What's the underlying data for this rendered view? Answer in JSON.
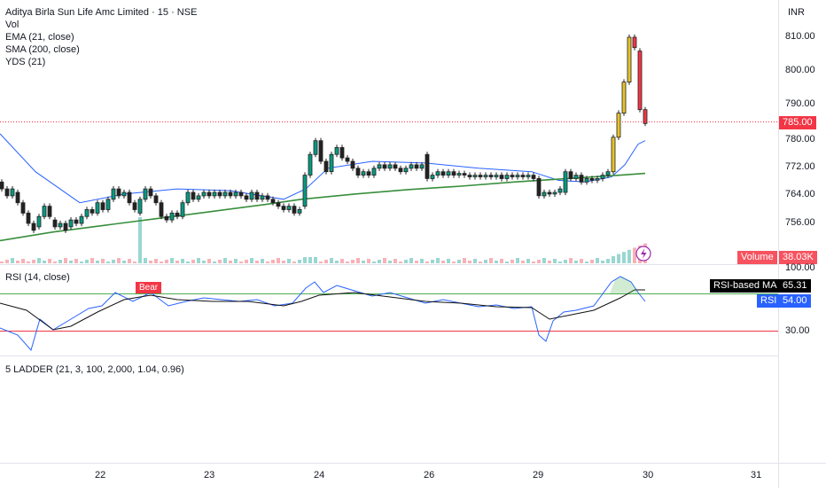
{
  "header": {
    "title": "Aditya Birla Sun Life Amc Limited · 15 · NSE",
    "indicators": [
      "Vol",
      "EMA (21, close)",
      "SMA (200, close)",
      "YDS (21)"
    ]
  },
  "price_axis": {
    "currency": "INR",
    "ticks": [
      "810.00",
      "800.00",
      "790.00",
      "780.00",
      "772.00",
      "764.00",
      "756.00"
    ],
    "last_price": "785.00",
    "last_price_color": "#f23645"
  },
  "volume": {
    "label": "Volume",
    "value": "38.03K",
    "color": "#f7525f"
  },
  "rsi_pane": {
    "title": "RSI (14, close)",
    "bear_label": "Bear",
    "axis_ticks": [
      "100.00",
      "30.00"
    ],
    "ma_label": "RSI-based MA",
    "ma_value": "65.31",
    "rsi_label": "RSI",
    "rsi_value": "54.00"
  },
  "ladder_pane": {
    "title": "5 LADDER (21, 3, 100, 2,000, 1.04, 0.96)"
  },
  "time_axis": {
    "ticks": [
      "22",
      "23",
      "24",
      "26",
      "29",
      "30",
      "31"
    ]
  },
  "chart_data": {
    "type": "candlestick",
    "title": "Aditya Birla Sun Life Amc Limited · 15 · NSE",
    "ylim": [
      750,
      815
    ],
    "series": [
      {
        "name": "EMA (21, close)",
        "color": "#2962ff",
        "points": [
          [
            0,
            782
          ],
          [
            40,
            771
          ],
          [
            90,
            762
          ],
          [
            140,
            764.5
          ],
          [
            200,
            766
          ],
          [
            260,
            765.5
          ],
          [
            320,
            763
          ],
          [
            345,
            766
          ],
          [
            370,
            772
          ],
          [
            420,
            774
          ],
          [
            480,
            773.5
          ],
          [
            540,
            772
          ],
          [
            600,
            771
          ],
          [
            630,
            768.5
          ],
          [
            660,
            768
          ],
          [
            690,
            769.5
          ],
          [
            705,
            773
          ],
          [
            720,
            779
          ],
          [
            728,
            780
          ]
        ]
      },
      {
        "name": "SMA (200, close)",
        "color": "#388e3c",
        "points": [
          [
            0,
            751
          ],
          [
            60,
            753.5
          ],
          [
            120,
            755.5
          ],
          [
            180,
            757.5
          ],
          [
            240,
            759.5
          ],
          [
            300,
            761.5
          ],
          [
            340,
            763
          ],
          [
            400,
            764.5
          ],
          [
            460,
            765.8
          ],
          [
            520,
            766.8
          ],
          [
            580,
            768
          ],
          [
            640,
            769
          ],
          [
            700,
            770
          ],
          [
            728,
            770.5
          ]
        ]
      }
    ],
    "candles_approx": [
      {
        "x": 2,
        "o": 768,
        "c": 766
      },
      {
        "x": 8,
        "o": 766,
        "c": 764
      },
      {
        "x": 14,
        "o": 764,
        "c": 766
      },
      {
        "x": 20,
        "o": 765,
        "c": 762
      },
      {
        "x": 26,
        "o": 762,
        "c": 759
      },
      {
        "x": 32,
        "o": 759,
        "c": 756
      },
      {
        "x": 38,
        "o": 756,
        "c": 754
      },
      {
        "x": 44,
        "o": 755,
        "c": 758
      },
      {
        "x": 50,
        "o": 758,
        "c": 761
      },
      {
        "x": 56,
        "o": 761,
        "c": 758
      },
      {
        "x": 62,
        "o": 757,
        "c": 755
      },
      {
        "x": 68,
        "o": 755,
        "c": 756
      },
      {
        "x": 74,
        "o": 756,
        "c": 754
      },
      {
        "x": 80,
        "o": 755,
        "c": 757
      },
      {
        "x": 86,
        "o": 757,
        "c": 756
      },
      {
        "x": 92,
        "o": 756,
        "c": 758
      },
      {
        "x": 98,
        "o": 758,
        "c": 760
      },
      {
        "x": 104,
        "o": 760,
        "c": 759
      },
      {
        "x": 110,
        "o": 759,
        "c": 762
      },
      {
        "x": 116,
        "o": 762,
        "c": 760
      },
      {
        "x": 122,
        "o": 760,
        "c": 763
      },
      {
        "x": 128,
        "o": 763,
        "c": 766
      },
      {
        "x": 134,
        "o": 766,
        "c": 764
      },
      {
        "x": 140,
        "o": 764,
        "c": 765
      },
      {
        "x": 146,
        "o": 765,
        "c": 762
      },
      {
        "x": 152,
        "o": 762,
        "c": 760
      },
      {
        "x": 158,
        "o": 759,
        "c": 763
      },
      {
        "x": 164,
        "o": 763,
        "c": 766
      },
      {
        "x": 170,
        "o": 766,
        "c": 764
      },
      {
        "x": 176,
        "o": 764,
        "c": 762
      },
      {
        "x": 182,
        "o": 762,
        "c": 758
      },
      {
        "x": 188,
        "o": 758,
        "c": 757
      },
      {
        "x": 194,
        "o": 757,
        "c": 759
      },
      {
        "x": 200,
        "o": 759,
        "c": 758
      },
      {
        "x": 206,
        "o": 758,
        "c": 762
      },
      {
        "x": 212,
        "o": 762,
        "c": 765
      },
      {
        "x": 218,
        "o": 765,
        "c": 763
      },
      {
        "x": 224,
        "o": 763,
        "c": 764
      },
      {
        "x": 230,
        "o": 764,
        "c": 765
      },
      {
        "x": 236,
        "o": 765,
        "c": 764
      },
      {
        "x": 242,
        "o": 764,
        "c": 765
      },
      {
        "x": 248,
        "o": 765,
        "c": 764
      },
      {
        "x": 254,
        "o": 764,
        "c": 765
      },
      {
        "x": 260,
        "o": 765,
        "c": 764
      },
      {
        "x": 266,
        "o": 764,
        "c": 765
      },
      {
        "x": 272,
        "o": 765,
        "c": 764
      },
      {
        "x": 278,
        "o": 764,
        "c": 763
      },
      {
        "x": 284,
        "o": 763,
        "c": 765
      },
      {
        "x": 290,
        "o": 765,
        "c": 763
      },
      {
        "x": 296,
        "o": 763,
        "c": 764
      },
      {
        "x": 302,
        "o": 764,
        "c": 763
      },
      {
        "x": 308,
        "o": 763,
        "c": 762
      },
      {
        "x": 314,
        "o": 762,
        "c": 761
      },
      {
        "x": 320,
        "o": 761,
        "c": 760
      },
      {
        "x": 326,
        "o": 760,
        "c": 761
      },
      {
        "x": 332,
        "o": 761,
        "c": 759
      },
      {
        "x": 338,
        "o": 759,
        "c": 760
      },
      {
        "x": 344,
        "o": 761,
        "c": 770
      },
      {
        "x": 350,
        "o": 770,
        "c": 776
      },
      {
        "x": 356,
        "o": 776,
        "c": 780
      },
      {
        "x": 362,
        "o": 780,
        "c": 774
      },
      {
        "x": 368,
        "o": 774,
        "c": 771
      },
      {
        "x": 374,
        "o": 771,
        "c": 776
      },
      {
        "x": 380,
        "o": 776,
        "c": 778
      },
      {
        "x": 386,
        "o": 778,
        "c": 775
      },
      {
        "x": 392,
        "o": 775,
        "c": 774
      },
      {
        "x": 398,
        "o": 774,
        "c": 772
      },
      {
        "x": 404,
        "o": 772,
        "c": 770
      },
      {
        "x": 410,
        "o": 770,
        "c": 771
      },
      {
        "x": 416,
        "o": 771,
        "c": 770
      },
      {
        "x": 422,
        "o": 770,
        "c": 772
      },
      {
        "x": 428,
        "o": 772,
        "c": 773
      },
      {
        "x": 434,
        "o": 773,
        "c": 772
      },
      {
        "x": 440,
        "o": 772,
        "c": 773
      },
      {
        "x": 446,
        "o": 773,
        "c": 772
      },
      {
        "x": 452,
        "o": 772,
        "c": 771
      },
      {
        "x": 458,
        "o": 771,
        "c": 772
      },
      {
        "x": 464,
        "o": 772,
        "c": 773
      },
      {
        "x": 470,
        "o": 773,
        "c": 772
      },
      {
        "x": 476,
        "o": 772,
        "c": 773
      },
      {
        "x": 482,
        "o": 776,
        "c": 769
      },
      {
        "x": 488,
        "o": 769,
        "c": 770
      },
      {
        "x": 494,
        "o": 770,
        "c": 771
      },
      {
        "x": 500,
        "o": 771,
        "c": 770
      },
      {
        "x": 506,
        "o": 770,
        "c": 771
      },
      {
        "x": 512,
        "o": 771,
        "c": 770
      },
      {
        "x": 518,
        "o": 770,
        "c": 770.5
      },
      {
        "x": 524,
        "o": 770.5,
        "c": 770
      },
      {
        "x": 530,
        "o": 770,
        "c": 769.5
      },
      {
        "x": 536,
        "o": 769.5,
        "c": 770
      },
      {
        "x": 542,
        "o": 770,
        "c": 769.5
      },
      {
        "x": 548,
        "o": 769.5,
        "c": 770
      },
      {
        "x": 554,
        "o": 770,
        "c": 769.5
      },
      {
        "x": 560,
        "o": 769.5,
        "c": 770
      },
      {
        "x": 566,
        "o": 770,
        "c": 769
      },
      {
        "x": 572,
        "o": 769,
        "c": 770
      },
      {
        "x": 578,
        "o": 770,
        "c": 769.5
      },
      {
        "x": 584,
        "o": 769.5,
        "c": 770
      },
      {
        "x": 590,
        "o": 770,
        "c": 769.5
      },
      {
        "x": 596,
        "o": 769.5,
        "c": 770
      },
      {
        "x": 602,
        "o": 770,
        "c": 769
      },
      {
        "x": 608,
        "o": 769,
        "c": 764
      },
      {
        "x": 614,
        "o": 764,
        "c": 765
      },
      {
        "x": 620,
        "o": 765,
        "c": 764.5
      },
      {
        "x": 626,
        "o": 764.5,
        "c": 765
      },
      {
        "x": 632,
        "o": 765,
        "c": 766
      },
      {
        "x": 638,
        "o": 765,
        "c": 771
      },
      {
        "x": 644,
        "o": 771,
        "c": 769
      },
      {
        "x": 650,
        "o": 769,
        "c": 770
      },
      {
        "x": 656,
        "o": 770,
        "c": 768
      },
      {
        "x": 662,
        "o": 768,
        "c": 769
      },
      {
        "x": 668,
        "o": 769,
        "c": 768.5
      },
      {
        "x": 674,
        "o": 768.5,
        "c": 769
      },
      {
        "x": 680,
        "o": 769,
        "c": 770
      },
      {
        "x": 686,
        "o": 770,
        "c": 771
      },
      {
        "x": 692,
        "o": 771,
        "c": 781
      },
      {
        "x": 698,
        "o": 781,
        "c": 788
      },
      {
        "x": 704,
        "o": 788,
        "c": 797
      },
      {
        "x": 710,
        "o": 797,
        "c": 810
      },
      {
        "x": 716,
        "o": 810,
        "c": 807
      },
      {
        "x": 722,
        "o": 806,
        "c": 789
      },
      {
        "x": 728,
        "o": 789,
        "c": 785
      }
    ]
  }
}
